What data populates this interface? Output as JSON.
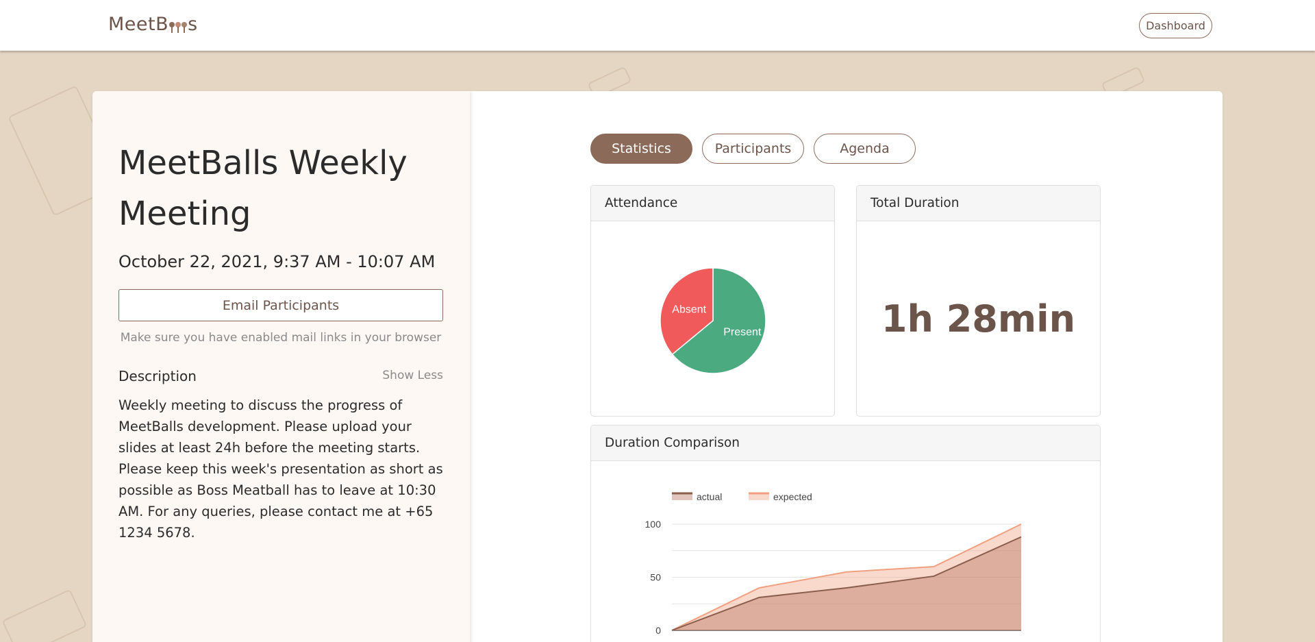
{
  "navbar": {
    "logo_prefix": "MeetB",
    "logo_suffix": "s",
    "dashboard_label": "Dashboard"
  },
  "meeting": {
    "title": "MeetBalls Weekly Meeting",
    "datetime": "October 22, 2021, 9:37 AM - 10:07 AM",
    "email_button": "Email Participants",
    "email_hint": "Make sure you have enabled mail links in your browser",
    "description_label": "Description",
    "show_less": "Show Less",
    "description": "Weekly meeting to discuss the progress of MeetBalls development. Please upload your slides at least 24h before the meeting starts. Please keep this week's presentation as short as possible as Boss Meatball has to leave at 10:30 AM. For any queries, please contact me at +65 1234 5678."
  },
  "tabs": [
    {
      "label": "Statistics",
      "active": true
    },
    {
      "label": "Participants",
      "active": false
    },
    {
      "label": "Agenda",
      "active": false
    }
  ],
  "attendance": {
    "header": "Attendance"
  },
  "total_duration": {
    "header": "Total Duration",
    "value": "1h 28min"
  },
  "comparison": {
    "header": "Duration Comparison"
  },
  "colors": {
    "brand": "#8b6a5a",
    "present": "#4caa80",
    "absent": "#f05a5a",
    "actual_line": "#8b5e4c",
    "expected_line": "#f0a080"
  },
  "chart_data": [
    {
      "type": "pie",
      "title": "Attendance",
      "labels": [
        "Present",
        "Absent"
      ],
      "values": [
        64,
        36
      ]
    },
    {
      "type": "area",
      "title": "Duration Comparison",
      "x": [
        0,
        1,
        2,
        3,
        4
      ],
      "series": [
        {
          "name": "actual",
          "values": [
            0,
            31,
            40,
            51,
            88
          ]
        },
        {
          "name": "expected",
          "values": [
            0,
            40,
            55,
            60,
            100
          ]
        }
      ],
      "yticks": [
        "0",
        "50",
        "100"
      ],
      "ylim": [
        0,
        100
      ]
    }
  ]
}
